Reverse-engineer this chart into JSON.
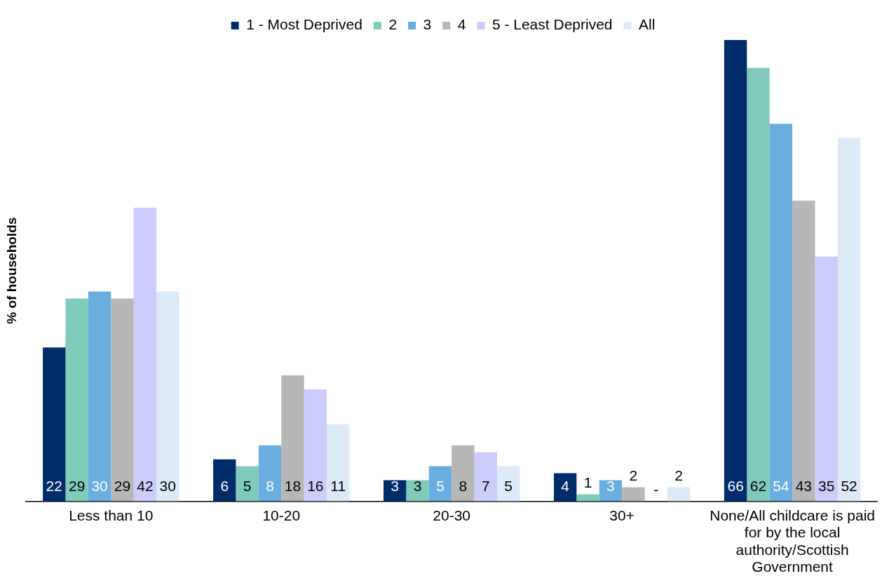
{
  "chart_data": {
    "type": "bar",
    "ylabel": "% of households",
    "categories": [
      "Less than 10",
      "10-20",
      "20-30",
      "30+",
      "None/All childcare is paid for by the local authority/Scottish Government"
    ],
    "series": [
      {
        "name": "1 - Most Deprived",
        "color": "#002d6a",
        "values": [
          22,
          6,
          3,
          4,
          66
        ]
      },
      {
        "name": "2",
        "color": "#80cabb",
        "values": [
          29,
          5,
          3,
          1,
          62
        ]
      },
      {
        "name": "3",
        "color": "#6aaee0",
        "values": [
          30,
          8,
          5,
          3,
          54
        ]
      },
      {
        "name": "4",
        "color": "#b7b7b7",
        "values": [
          29,
          18,
          8,
          2,
          43
        ]
      },
      {
        "name": "5 - Least Deprived",
        "color": "#ccccfd",
        "values": [
          42,
          16,
          7,
          null,
          35
        ],
        "value_labels": [
          "42",
          "16",
          "7",
          "-",
          "35"
        ]
      },
      {
        "name": "All",
        "color": "#dce9f7",
        "values": [
          30,
          11,
          5,
          2,
          52
        ]
      }
    ],
    "data_labels": true,
    "legend": "top"
  }
}
